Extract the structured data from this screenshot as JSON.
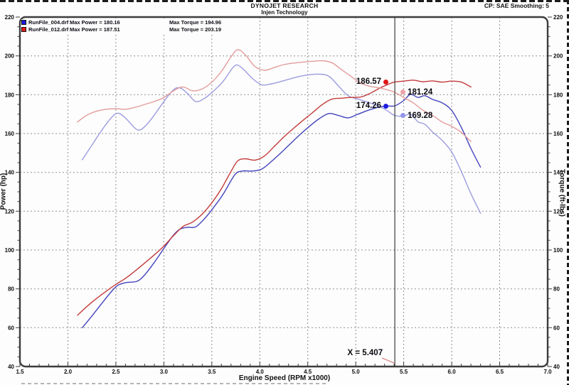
{
  "header": {
    "title": "DYNOJET RESEARCH",
    "subtitle": "Injen Technology",
    "right_status": "CP: SAE  Smoothing: 5"
  },
  "legend": {
    "rows": [
      {
        "swatch_color": "#1a1ae0",
        "file": "RunFile_004.drf",
        "power": "Max Power = 180.16",
        "torque": "Max Torque = 194.96"
      },
      {
        "swatch_color": "#e81818",
        "file": "RunFile_012.drf",
        "power": "Max Power = 187.51",
        "torque": "Max Torque = 203.19"
      }
    ]
  },
  "axes": {
    "x": {
      "label": "Engine Speed (RPM x1000)",
      "min": 1.5,
      "max": 7.0,
      "major_step": 0.5,
      "minor_step": 0.1
    },
    "y_left": {
      "label": "Power (hp)",
      "min": 40,
      "max": 220,
      "major_step": 20,
      "minor_step": 5
    },
    "y_right": {
      "label": "Torque (ft-lbs)",
      "min": 40,
      "max": 220,
      "major_step": 20,
      "minor_step": 5
    }
  },
  "cursor": {
    "x": 5.407,
    "label": "X = 5.407",
    "readouts": [
      {
        "value": "186.57",
        "side": "left",
        "dot_color": "#e01414"
      },
      {
        "value": "181.24",
        "side": "right",
        "dot_color": "#efa2a6"
      },
      {
        "value": "174.26",
        "side": "left",
        "dot_color": "#1b1be0"
      },
      {
        "value": "169.28",
        "side": "right",
        "dot_color": "#9595ea"
      }
    ]
  },
  "chart_data": {
    "type": "line",
    "title": "Dynojet power and torque runs",
    "xlabel": "Engine Speed (RPM x1000)",
    "ylabel_left": "Power (hp)",
    "ylabel_right": "Torque (ft-lbs)",
    "xlim": [
      1.5,
      7.0
    ],
    "ylim": [
      40,
      220
    ],
    "grid": "dashed",
    "series": [
      {
        "name": "RunFile_004 Power (hp)",
        "color": "#4343bd",
        "max": 180.16,
        "points": [
          [
            2.15,
            60.0
          ],
          [
            2.25,
            66.0
          ],
          [
            2.35,
            72.3
          ],
          [
            2.45,
            78.4
          ],
          [
            2.52,
            81.8
          ],
          [
            2.6,
            83.2
          ],
          [
            2.72,
            83.9
          ],
          [
            2.8,
            87.2
          ],
          [
            2.9,
            93.6
          ],
          [
            3.0,
            100.8
          ],
          [
            3.1,
            107.7
          ],
          [
            3.17,
            110.8
          ],
          [
            3.25,
            111.7
          ],
          [
            3.33,
            111.9
          ],
          [
            3.42,
            115.9
          ],
          [
            3.52,
            122.0
          ],
          [
            3.62,
            128.9
          ],
          [
            3.74,
            138.8
          ],
          [
            3.82,
            140.7
          ],
          [
            3.92,
            140.7
          ],
          [
            4.02,
            141.7
          ],
          [
            4.12,
            145.6
          ],
          [
            4.22,
            150.1
          ],
          [
            4.32,
            154.8
          ],
          [
            4.42,
            159.5
          ],
          [
            4.52,
            163.8
          ],
          [
            4.62,
            167.7
          ],
          [
            4.72,
            170.3
          ],
          [
            4.82,
            169.3
          ],
          [
            4.92,
            168.1
          ],
          [
            5.02,
            169.9
          ],
          [
            5.12,
            171.8
          ],
          [
            5.22,
            173.4
          ],
          [
            5.32,
            174.2
          ],
          [
            5.407,
            174.26
          ],
          [
            5.5,
            177.0
          ],
          [
            5.57,
            180.16
          ],
          [
            5.65,
            178.6
          ],
          [
            5.72,
            179.5
          ],
          [
            5.8,
            177.6
          ],
          [
            5.9,
            175.8
          ],
          [
            6.0,
            171.9
          ],
          [
            6.1,
            163.2
          ],
          [
            6.2,
            152.3
          ],
          [
            6.3,
            142.7
          ]
        ]
      },
      {
        "name": "RunFile_004 Torque (ft-lbs)",
        "color": "#9c9ce0",
        "max": 194.96,
        "points": [
          [
            2.15,
            146.5
          ],
          [
            2.25,
            154.0
          ],
          [
            2.35,
            161.5
          ],
          [
            2.45,
            168.0
          ],
          [
            2.52,
            170.5
          ],
          [
            2.6,
            168.0
          ],
          [
            2.72,
            162.0
          ],
          [
            2.8,
            163.5
          ],
          [
            2.9,
            169.5
          ],
          [
            3.0,
            176.5
          ],
          [
            3.1,
            182.5
          ],
          [
            3.17,
            183.5
          ],
          [
            3.25,
            180.5
          ],
          [
            3.33,
            176.5
          ],
          [
            3.42,
            178.0
          ],
          [
            3.52,
            182.0
          ],
          [
            3.62,
            187.0
          ],
          [
            3.74,
            194.96
          ],
          [
            3.82,
            193.5
          ],
          [
            3.92,
            188.5
          ],
          [
            4.02,
            185.1
          ],
          [
            4.12,
            185.6
          ],
          [
            4.22,
            186.8
          ],
          [
            4.32,
            188.2
          ],
          [
            4.42,
            189.5
          ],
          [
            4.52,
            190.3
          ],
          [
            4.62,
            190.6
          ],
          [
            4.72,
            189.5
          ],
          [
            4.82,
            184.5
          ],
          [
            4.92,
            179.5
          ],
          [
            5.02,
            177.8
          ],
          [
            5.12,
            176.2
          ],
          [
            5.22,
            174.5
          ],
          [
            5.32,
            172.0
          ],
          [
            5.407,
            169.28
          ],
          [
            5.5,
            169.0
          ],
          [
            5.57,
            169.9
          ],
          [
            5.65,
            166.0
          ],
          [
            5.72,
            164.8
          ],
          [
            5.8,
            160.8
          ],
          [
            5.9,
            156.5
          ],
          [
            6.0,
            150.5
          ],
          [
            6.1,
            140.5
          ],
          [
            6.2,
            129.0
          ],
          [
            6.3,
            119.0
          ]
        ]
      },
      {
        "name": "RunFile_012 Power (hp)",
        "color": "#c43b3b",
        "max": 187.51,
        "points": [
          [
            2.1,
            66.4
          ],
          [
            2.2,
            71.0
          ],
          [
            2.3,
            75.1
          ],
          [
            2.4,
            78.8
          ],
          [
            2.5,
            82.3
          ],
          [
            2.6,
            85.4
          ],
          [
            2.7,
            89.2
          ],
          [
            2.8,
            93.3
          ],
          [
            2.9,
            97.5
          ],
          [
            3.0,
            102.0
          ],
          [
            3.1,
            107.4
          ],
          [
            3.2,
            112.1
          ],
          [
            3.3,
            114.4
          ],
          [
            3.4,
            118.5
          ],
          [
            3.5,
            124.3
          ],
          [
            3.6,
            131.6
          ],
          [
            3.7,
            140.5
          ],
          [
            3.77,
            145.9
          ],
          [
            3.85,
            147.0
          ],
          [
            3.95,
            146.3
          ],
          [
            4.05,
            148.5
          ],
          [
            4.15,
            153.3
          ],
          [
            4.25,
            158.2
          ],
          [
            4.35,
            162.6
          ],
          [
            4.45,
            166.8
          ],
          [
            4.55,
            170.8
          ],
          [
            4.65,
            174.9
          ],
          [
            4.75,
            177.7
          ],
          [
            4.85,
            178.2
          ],
          [
            4.95,
            178.6
          ],
          [
            5.05,
            178.8
          ],
          [
            5.15,
            180.7
          ],
          [
            5.25,
            183.4
          ],
          [
            5.35,
            185.6
          ],
          [
            5.407,
            186.57
          ],
          [
            5.5,
            187.0
          ],
          [
            5.6,
            187.5
          ],
          [
            5.7,
            186.7
          ],
          [
            5.8,
            187.1
          ],
          [
            5.9,
            186.5
          ],
          [
            6.0,
            187.0
          ],
          [
            6.1,
            186.5
          ],
          [
            6.2,
            184.0
          ]
        ]
      },
      {
        "name": "RunFile_012 Torque (ft-lbs)",
        "color": "#e49c9c",
        "max": 203.19,
        "points": [
          [
            2.1,
            166.0
          ],
          [
            2.2,
            169.5
          ],
          [
            2.3,
            171.5
          ],
          [
            2.4,
            172.5
          ],
          [
            2.5,
            172.8
          ],
          [
            2.6,
            172.5
          ],
          [
            2.7,
            173.5
          ],
          [
            2.8,
            175.0
          ],
          [
            2.9,
            176.5
          ],
          [
            3.0,
            178.5
          ],
          [
            3.1,
            182.0
          ],
          [
            3.2,
            184.0
          ],
          [
            3.3,
            182.0
          ],
          [
            3.4,
            183.0
          ],
          [
            3.5,
            186.5
          ],
          [
            3.6,
            192.0
          ],
          [
            3.7,
            199.5
          ],
          [
            3.77,
            203.19
          ],
          [
            3.85,
            200.5
          ],
          [
            3.95,
            194.5
          ],
          [
            4.05,
            192.6
          ],
          [
            4.15,
            194.0
          ],
          [
            4.25,
            195.5
          ],
          [
            4.35,
            196.3
          ],
          [
            4.45,
            196.8
          ],
          [
            4.55,
            197.2
          ],
          [
            4.65,
            197.5
          ],
          [
            4.75,
            196.5
          ],
          [
            4.85,
            193.0
          ],
          [
            4.95,
            189.5
          ],
          [
            5.05,
            186.0
          ],
          [
            5.15,
            184.3
          ],
          [
            5.25,
            183.5
          ],
          [
            5.35,
            182.2
          ],
          [
            5.407,
            181.24
          ],
          [
            5.5,
            178.6
          ],
          [
            5.6,
            175.8
          ],
          [
            5.7,
            172.0
          ],
          [
            5.8,
            169.4
          ],
          [
            5.9,
            166.0
          ],
          [
            6.0,
            163.7
          ],
          [
            6.1,
            160.6
          ],
          [
            6.2,
            155.9
          ]
        ]
      }
    ]
  },
  "style": {
    "grid_color": "#8f8f8f",
    "border_color": "#3d3d3d",
    "cursor_color": "#3a3a3a",
    "pointer_color": "#d06a6a",
    "tick_label_color": "#101010"
  }
}
